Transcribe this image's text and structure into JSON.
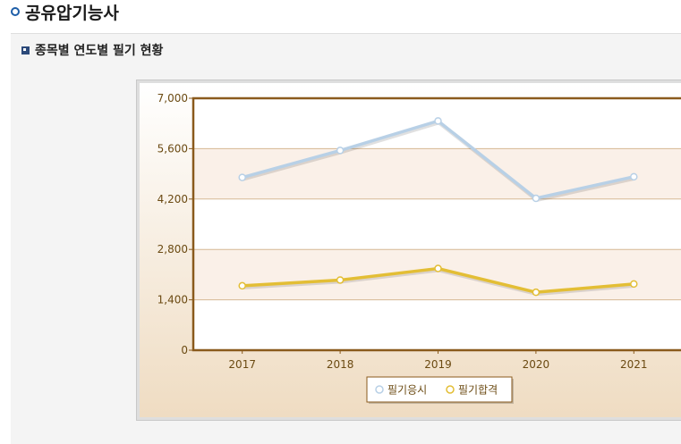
{
  "header": {
    "title": "공유압기능사"
  },
  "section": {
    "title": "종목별 연도별 필기 현황"
  },
  "chart_data": {
    "type": "line",
    "title": "",
    "xlabel": "",
    "ylabel": "",
    "categories": [
      "2017",
      "2018",
      "2019",
      "2020",
      "2021"
    ],
    "ylim": [
      0,
      7000
    ],
    "yticks": [
      0,
      1400,
      2800,
      4200,
      5600,
      7000
    ],
    "ytick_labels": [
      "0",
      "1,400",
      "2,800",
      "4,200",
      "5,600",
      "7,000"
    ],
    "grid": true,
    "legend_position": "bottom-center",
    "series": [
      {
        "name": "필기응시",
        "color": "#b8d0e6",
        "values": [
          4800,
          5550,
          6370,
          4220,
          4820
        ]
      },
      {
        "name": "필기합격",
        "color": "#e3be35",
        "values": [
          1790,
          1950,
          2270,
          1610,
          1840
        ]
      }
    ]
  }
}
